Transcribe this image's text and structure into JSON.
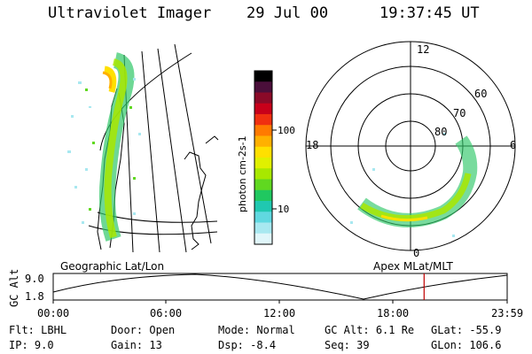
{
  "header": {
    "instrument": "Ultraviolet Imager",
    "date": "29 Jul 00",
    "time": "19:37:45 UT"
  },
  "colorbar": {
    "label": "photon cm-2s-1",
    "ticks": [
      "100",
      "10"
    ],
    "colors": [
      "#000000",
      "#4a0f3a",
      "#8a0a28",
      "#c8001a",
      "#f03010",
      "#ff7a00",
      "#ffb000",
      "#ffe000",
      "#e0f000",
      "#a8e800",
      "#60d820",
      "#20c860",
      "#20c8b0",
      "#60d8e0",
      "#a8e8f0",
      "#e0f6fa"
    ]
  },
  "polar_labels": {
    "top": "12",
    "left": "18",
    "right": "6",
    "bottom": "0",
    "lat_60": "60",
    "lat_70": "70",
    "lat_80": "80"
  },
  "timeline": {
    "left_title": "Geographic Lat/Lon",
    "right_title": "Apex MLat/MLT",
    "y_axis_label": "GC Alt",
    "y_max": "9.0",
    "y_min": "1.8",
    "ticks": [
      "00:00",
      "06:00",
      "12:00",
      "18:00",
      "23:59"
    ],
    "marker_color": "#c00000",
    "marker_time_fraction": 0.817
  },
  "footer": {
    "row1": [
      {
        "label": "Flt:",
        "value": "LBHL"
      },
      {
        "label": "Door:",
        "value": "Open"
      },
      {
        "label": "Mode:",
        "value": "Normal"
      },
      {
        "label": "GC Alt:",
        "value": "6.1 Re"
      },
      {
        "label": "GLat:",
        "value": "-55.9"
      }
    ],
    "row2": [
      {
        "label": "IP:",
        "value": "9.0"
      },
      {
        "label": "Gain:",
        "value": "13"
      },
      {
        "label": "Dsp:",
        "value": "-8.4"
      },
      {
        "label": "Seq:",
        "value": "39"
      },
      {
        "label": "GLon:",
        "value": "106.6"
      }
    ]
  }
}
